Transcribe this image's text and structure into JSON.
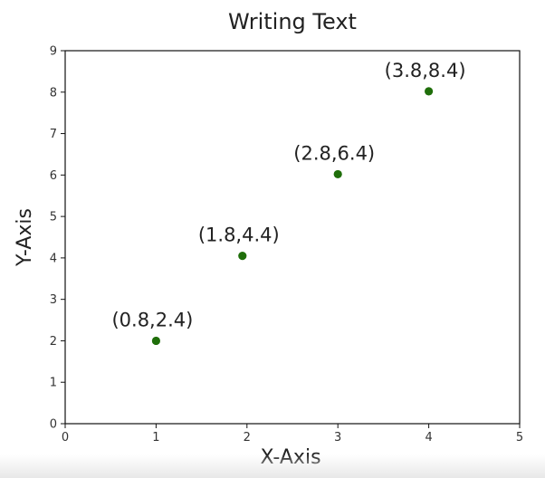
{
  "chart_data": {
    "type": "scatter",
    "title": "Writing Text",
    "xlabel": "X-Axis",
    "ylabel": "Y-Axis",
    "xlim": [
      0,
      5
    ],
    "ylim": [
      0,
      9
    ],
    "xticks": [
      0,
      1,
      2,
      3,
      4,
      5
    ],
    "yticks": [
      0,
      1,
      2,
      3,
      4,
      5,
      6,
      7,
      8,
      9
    ],
    "grid": false,
    "series": [
      {
        "color": "#1f6e0a",
        "points": [
          {
            "x": 1,
            "y": 2,
            "label": "(0.8,2.4)"
          },
          {
            "x": 1.95,
            "y": 4.05,
            "label": "(1.8,4.4)"
          },
          {
            "x": 3,
            "y": 6.02,
            "label": "(2.8,6.4)"
          },
          {
            "x": 4,
            "y": 8.02,
            "label": "(3.8,8.4)"
          }
        ]
      }
    ]
  }
}
